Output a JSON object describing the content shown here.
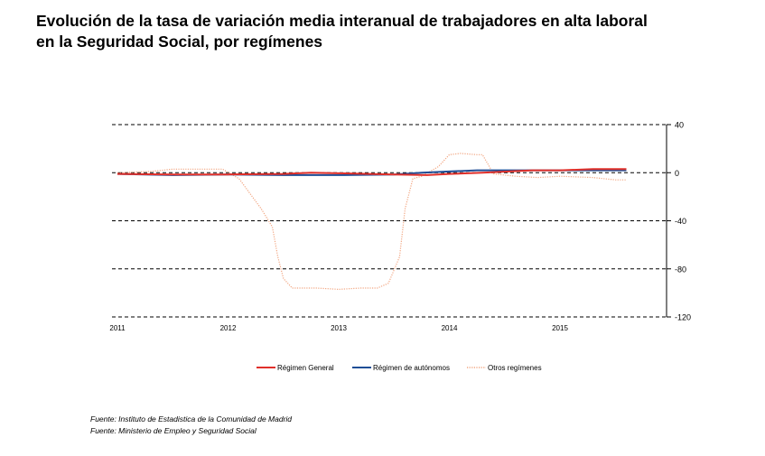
{
  "title_lines": [
    "Evolución de la tasa de variación media interanual de trabajadores en alta laboral",
    "en la Seguridad Social, por  regímenes"
  ],
  "sources": [
    "Fuente: Instituto de Estadistica de la Comunidad de Madrid",
    "Fuente: Ministerio de Empleo y Seguridad Social"
  ],
  "chart_data": {
    "type": "line",
    "title": "Evolución de la tasa de variación media interanual de trabajadores en alta laboral en la Seguridad Social, por  regímenes",
    "xlabel": "",
    "ylabel": "",
    "ylim": [
      -120,
      40
    ],
    "yticks": [
      40,
      0,
      -40,
      -80,
      -120
    ],
    "xlim": [
      2011,
      2015.85
    ],
    "xticks": [
      "2011",
      "2012",
      "2013",
      "2014",
      "2015"
    ],
    "grid": true,
    "legend_position": "bottom",
    "series": [
      {
        "name": "Régimen General",
        "color": "#e0302a",
        "style": "solid",
        "x": [
          2011.0,
          2011.5,
          2012.0,
          2012.5,
          2012.75,
          2013.0,
          2013.5,
          2013.8,
          2014.0,
          2014.3,
          2014.75,
          2015.0,
          2015.3,
          2015.6
        ],
        "y": [
          -1,
          -1.5,
          -1.5,
          -1,
          0,
          -0.5,
          -1.5,
          -2,
          -1,
          0,
          2,
          2,
          3,
          3
        ]
      },
      {
        "name": "Régimen de autónomos",
        "color": "#1f4e96",
        "style": "solid",
        "x": [
          2011.0,
          2011.5,
          2012.0,
          2012.5,
          2013.0,
          2013.5,
          2013.75,
          2014.0,
          2014.25,
          2014.5,
          2015.0,
          2015.5,
          2015.6
        ],
        "y": [
          -1,
          -2,
          -1.5,
          -2,
          -2,
          -1.5,
          0,
          1,
          2,
          2,
          2,
          2,
          2
        ]
      },
      {
        "name": "Otros regímenes",
        "color": "#f2a580",
        "style": "dotted",
        "x": [
          2011.0,
          2011.3,
          2011.5,
          2011.75,
          2011.95,
          2012.1,
          2012.3,
          2012.4,
          2012.45,
          2012.5,
          2012.58,
          2012.8,
          2013.0,
          2013.2,
          2013.35,
          2013.45,
          2013.55,
          2013.6,
          2013.67,
          2013.75,
          2013.9,
          2014.0,
          2014.1,
          2014.25,
          2014.3,
          2014.4,
          2014.6,
          2014.8,
          2015.0,
          2015.3,
          2015.5,
          2015.6
        ],
        "y": [
          0,
          1,
          3,
          3,
          3,
          -5,
          -30,
          -45,
          -70,
          -88,
          -96,
          -96,
          -97,
          -96,
          -96,
          -92,
          -70,
          -30,
          -5,
          -3,
          5,
          15,
          16,
          15,
          15,
          -1,
          -3,
          -4,
          -3,
          -4,
          -6,
          -6
        ]
      }
    ]
  }
}
